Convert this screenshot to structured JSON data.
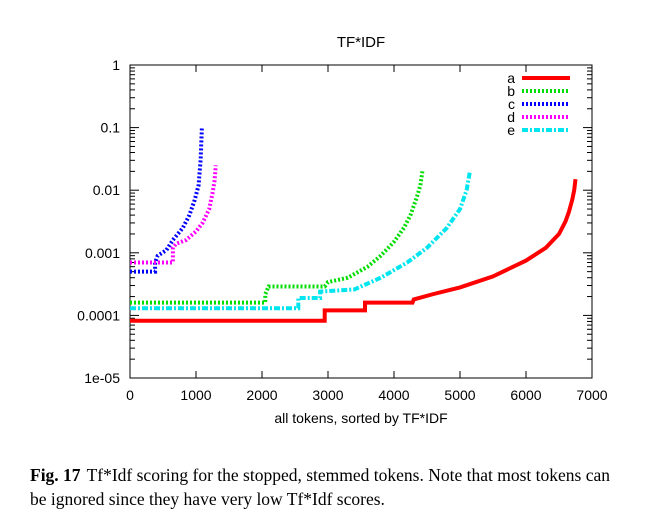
{
  "caption": {
    "label": "Fig. 17",
    "text": "Tf*Idf scoring for the stopped, stemmed tokens. Note that most tokens can be ignored since they have very low Tf*Idf scores."
  },
  "chart_data": {
    "type": "line",
    "title": "TF*IDF",
    "xlabel": "all tokens, sorted by TF*IDF",
    "ylabel": "",
    "xlim": [
      0,
      7000
    ],
    "ylim": [
      1e-05,
      1
    ],
    "yscale": "log",
    "x_ticks": [
      0,
      1000,
      2000,
      3000,
      4000,
      5000,
      6000,
      7000
    ],
    "x_tick_labels": [
      "0",
      "1000",
      "2000",
      "3000",
      "4000",
      "5000",
      "6000",
      "7000"
    ],
    "y_ticks": [
      1e-05,
      0.0001,
      0.001,
      0.01,
      0.1,
      1
    ],
    "y_tick_labels": [
      "1e-05",
      "0.0001",
      "0.001",
      "0.01",
      "0.1",
      "1"
    ],
    "grid": false,
    "legend_position": "top-right",
    "series": [
      {
        "name": "a",
        "color": "#ff0000",
        "dash": "solid",
        "points": [
          [
            0,
            8.2e-05
          ],
          [
            2950,
            8.2e-05
          ],
          [
            2950,
            0.00012
          ],
          [
            3560,
            0.00012
          ],
          [
            3560,
            0.00016
          ],
          [
            4280,
            0.00016
          ],
          [
            4300,
            0.00018
          ],
          [
            4600,
            0.00022
          ],
          [
            5000,
            0.00028
          ],
          [
            5500,
            0.00042
          ],
          [
            6000,
            0.00075
          ],
          [
            6300,
            0.0012
          ],
          [
            6500,
            0.002
          ],
          [
            6600,
            0.0032
          ],
          [
            6650,
            0.0045
          ],
          [
            6700,
            0.007
          ],
          [
            6730,
            0.01
          ],
          [
            6750,
            0.015
          ]
        ]
      },
      {
        "name": "b",
        "color": "#00dd00",
        "dash": "dotted",
        "points": [
          [
            0,
            0.00016
          ],
          [
            2050,
            0.00016
          ],
          [
            2050,
            0.00022
          ],
          [
            2100,
            0.00029
          ],
          [
            2150,
            0.00029
          ],
          [
            2950,
            0.00029
          ],
          [
            3000,
            0.00034
          ],
          [
            3300,
            0.0004
          ],
          [
            3600,
            0.0006
          ],
          [
            3800,
            0.0009
          ],
          [
            4000,
            0.0015
          ],
          [
            4150,
            0.0025
          ],
          [
            4250,
            0.004
          ],
          [
            4350,
            0.008
          ],
          [
            4400,
            0.012
          ],
          [
            4430,
            0.02
          ]
        ]
      },
      {
        "name": "c",
        "color": "#0000ff",
        "dash": "dotted",
        "points": [
          [
            0,
            0.0005
          ],
          [
            380,
            0.0005
          ],
          [
            380,
            0.0007
          ],
          [
            420,
            0.0009
          ],
          [
            550,
            0.0011
          ],
          [
            650,
            0.0016
          ],
          [
            800,
            0.0025
          ],
          [
            900,
            0.004
          ],
          [
            980,
            0.007
          ],
          [
            1040,
            0.012
          ],
          [
            1070,
            0.03
          ],
          [
            1090,
            0.1
          ]
        ]
      },
      {
        "name": "d",
        "color": "#ff00ff",
        "dash": "dotted",
        "points": [
          [
            0,
            0.0007
          ],
          [
            650,
            0.0007
          ],
          [
            650,
            0.0012
          ],
          [
            700,
            0.0014
          ],
          [
            850,
            0.0016
          ],
          [
            1000,
            0.0022
          ],
          [
            1100,
            0.003
          ],
          [
            1200,
            0.005
          ],
          [
            1250,
            0.009
          ],
          [
            1280,
            0.014
          ],
          [
            1300,
            0.025
          ]
        ]
      },
      {
        "name": "e",
        "color": "#00e5ee",
        "dash": "dashdot",
        "points": [
          [
            0,
            0.00013
          ],
          [
            2550,
            0.00013
          ],
          [
            2550,
            0.00019
          ],
          [
            2880,
            0.00019
          ],
          [
            2880,
            0.00024
          ],
          [
            3400,
            0.00026
          ],
          [
            3800,
            0.0004
          ],
          [
            4200,
            0.0007
          ],
          [
            4500,
            0.0012
          ],
          [
            4800,
            0.0025
          ],
          [
            5000,
            0.005
          ],
          [
            5100,
            0.01
          ],
          [
            5150,
            0.02
          ]
        ]
      }
    ]
  }
}
